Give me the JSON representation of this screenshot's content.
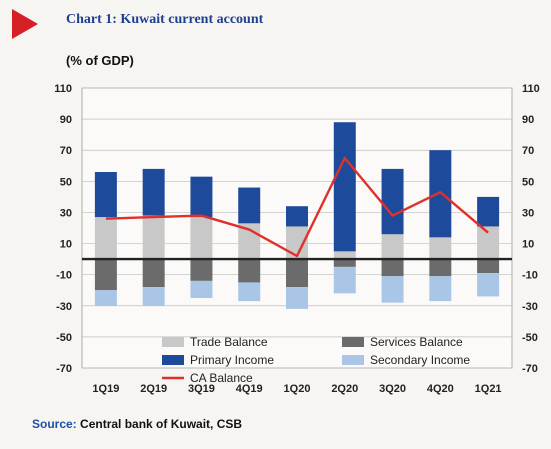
{
  "header": {
    "title": "Chart 1: Kuwait current account",
    "unit": "(% of GDP)"
  },
  "footer": {
    "source_label": "Source:",
    "source_text": "Central bank of Kuwait, CSB"
  },
  "colors": {
    "trade": "#c8c8c8",
    "services": "#6b6b6b",
    "primary": "#1d4a9a",
    "secondary": "#a9c6e6",
    "ca_line": "#e0302a",
    "title_arrow": "#d71f26"
  },
  "chart_data": {
    "type": "bar",
    "stacked": true,
    "categories": [
      "1Q19",
      "2Q19",
      "3Q19",
      "4Q19",
      "1Q20",
      "2Q20",
      "3Q20",
      "4Q20",
      "1Q21"
    ],
    "series": [
      {
        "name": "Trade Balance",
        "type": "bar",
        "values": [
          27,
          28,
          27,
          23,
          21,
          5,
          16,
          14,
          21
        ]
      },
      {
        "name": "Services Balance",
        "type": "bar",
        "values": [
          -20,
          -18,
          -14,
          -15,
          -18,
          -5,
          -11,
          -11,
          -9
        ]
      },
      {
        "name": "Primary Income",
        "type": "bar",
        "values": [
          29,
          30,
          26,
          23,
          13,
          83,
          42,
          56,
          19
        ]
      },
      {
        "name": "Secondary Income",
        "type": "bar",
        "values": [
          -10,
          -12,
          -11,
          -12,
          -14,
          -17,
          -17,
          -16,
          -15
        ]
      },
      {
        "name": "CA Balance",
        "type": "line",
        "values": [
          26,
          27,
          28,
          19,
          2,
          65,
          28,
          43,
          17
        ]
      }
    ],
    "yticks": [
      110,
      90,
      70,
      50,
      30,
      10,
      -10,
      -30,
      -50,
      -70
    ],
    "ylim": [
      -70,
      110
    ],
    "secondary_axis": true,
    "grid": true,
    "legend_position": "bottom-inside"
  }
}
